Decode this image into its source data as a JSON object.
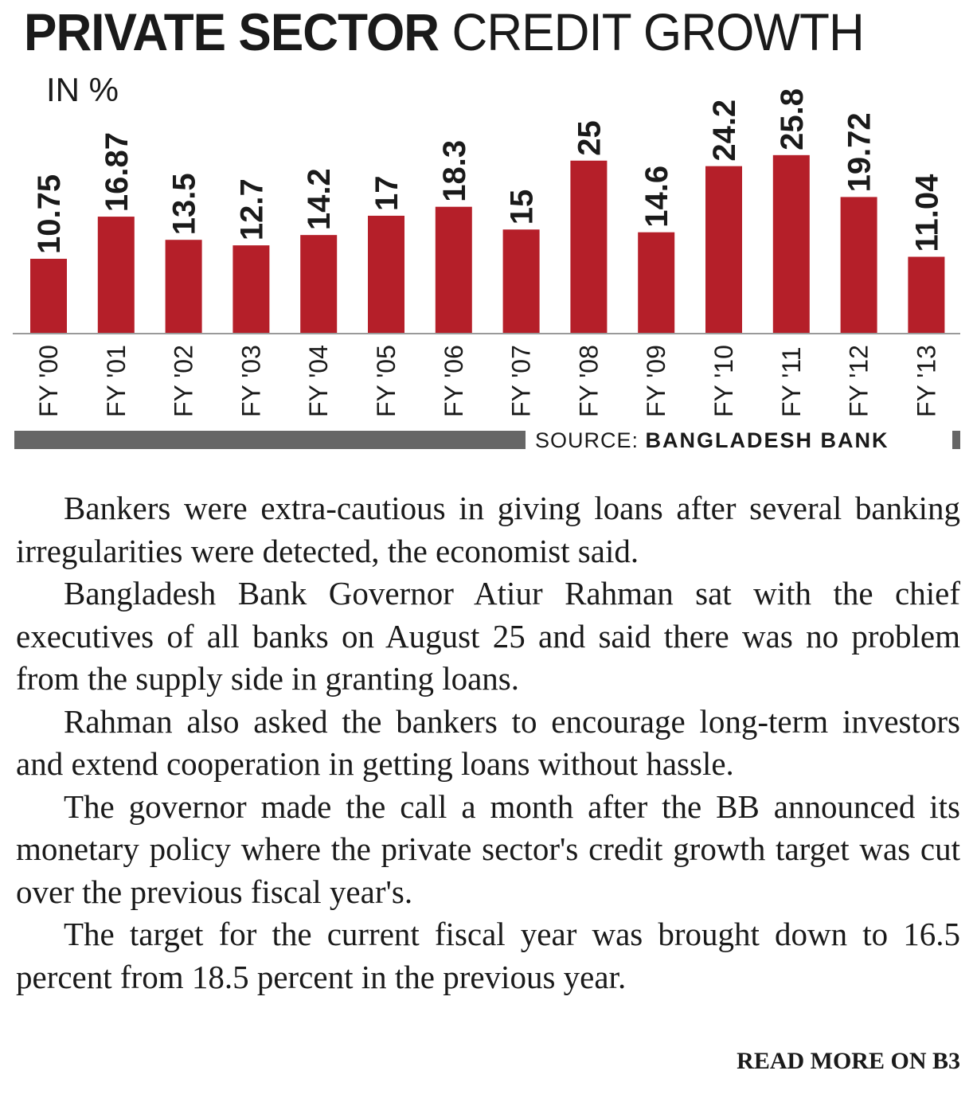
{
  "header": {
    "title_bold": "PRIVATE SECTOR",
    "title_light": "CREDIT GROWTH",
    "unit": "IN %"
  },
  "chart_data": {
    "type": "bar",
    "title": "PRIVATE SECTOR CREDIT GROWTH",
    "ylabel": "IN %",
    "categories": [
      "FY '00",
      "FY '01",
      "FY '02",
      "FY '03",
      "FY '04",
      "FY '05",
      "FY '06",
      "FY '07",
      "FY '08",
      "FY '09",
      "FY '10",
      "FY '11",
      "FY '12",
      "FY '13"
    ],
    "values": [
      10.75,
      16.87,
      13.5,
      12.7,
      14.2,
      17,
      18.3,
      15,
      25,
      14.6,
      24.2,
      25.8,
      19.72,
      11.04
    ],
    "value_labels": [
      "10.75",
      "16.87",
      "13.5",
      "12.7",
      "14.2",
      "17",
      "18.3",
      "15",
      "25",
      "14.6",
      "24.2",
      "25.8",
      "19.72",
      "11.04"
    ],
    "ylim": [
      0,
      30
    ],
    "grid": false,
    "bar_color": "#b51f29"
  },
  "source": {
    "label": "SOURCE:",
    "name": "BANGLADESH BANK"
  },
  "article": {
    "paragraphs": [
      "Bankers were extra-cautious in giving loans after several banking irregularities were detected, the economist said.",
      "Bangladesh Bank Governor Atiur Rahman sat with the chief executives of all banks on August 25 and said there was no problem from the supply side in granting loans.",
      "Rahman also asked the bankers to encourage long-term investors and extend cooperation in getting loans without hassle.",
      "The governor made the call a month after the BB announced its monetary policy where the private sector's credit growth target was cut over the previous fiscal year's.",
      "The target for the current fiscal year was brought down to 16.5 percent from 18.5 percent in the previous year."
    ],
    "read_more": "READ MORE ON B3"
  }
}
